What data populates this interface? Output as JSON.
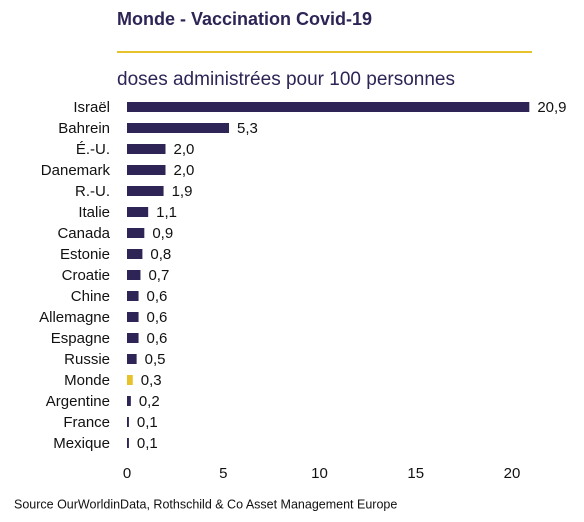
{
  "chart_data": {
    "type": "hbar",
    "title": "Monde - Vaccination Covid-19",
    "subtitle": "doses administrées pour 100 personnes",
    "source": "Source OurWorldinData, Rothschild & Co Asset Management Europe",
    "categories": [
      "Israël",
      "Bahrein",
      "É.-U.",
      "Danemark",
      "R.-U.",
      "Italie",
      "Canada",
      "Estonie",
      "Croatie",
      "Chine",
      "Allemagne",
      "Espagne",
      "Russie",
      "Monde",
      "Argentine",
      "France",
      "Mexique"
    ],
    "values": [
      20.9,
      5.3,
      2.0,
      2.0,
      1.9,
      1.1,
      0.9,
      0.8,
      0.7,
      0.6,
      0.6,
      0.6,
      0.5,
      0.3,
      0.2,
      0.1,
      0.1
    ],
    "value_labels": [
      "20,9",
      "5,3",
      "2,0",
      "2,0",
      "1,9",
      "1,1",
      "0,9",
      "0,8",
      "0,7",
      "0,6",
      "0,6",
      "0,6",
      "0,5",
      "0,3",
      "0,2",
      "0,1",
      "0,1"
    ],
    "colors": [
      "#2e2556",
      "#2e2556",
      "#2e2556",
      "#2e2556",
      "#2e2556",
      "#2e2556",
      "#2e2556",
      "#2e2556",
      "#2e2556",
      "#2e2556",
      "#2e2556",
      "#2e2556",
      "#2e2556",
      "#e8c22a",
      "#2e2556",
      "#2e2556",
      "#2e2556"
    ],
    "xlim": [
      0,
      22
    ],
    "xticks": [
      0,
      5,
      10,
      15,
      20
    ]
  }
}
